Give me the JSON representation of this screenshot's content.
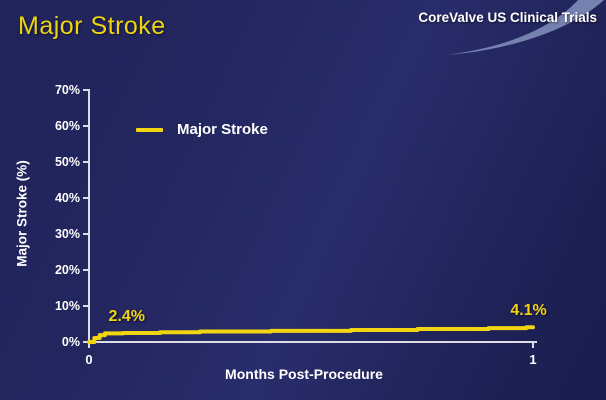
{
  "slide": {
    "title": "Major Stroke",
    "logo_text": "CoreValve US Clinical Trials"
  },
  "colors": {
    "background_navy": "#22255D",
    "accent_yellow": "#F2D411",
    "axis": "#DDDDE8",
    "text_white": "#FFFFFF",
    "swoosh_blue": "#7E8CB8"
  },
  "chart_data": {
    "type": "line",
    "title": "",
    "xlabel": "Months Post-Procedure",
    "ylabel": "Major Stroke (%)",
    "xlim": [
      0,
      1
    ],
    "ylim": [
      0,
      70
    ],
    "grid": false,
    "xticks": [
      0,
      1
    ],
    "yticks": [
      0,
      10,
      20,
      30,
      40,
      50,
      60,
      70
    ],
    "ytick_suffix": "%",
    "legend": {
      "position": "upper-left-inside"
    },
    "series": [
      {
        "name": "Major Stroke",
        "color": "#F2D411",
        "interpolation": "step-after",
        "points": [
          [
            0,
            0
          ],
          [
            0.012,
            1.1
          ],
          [
            0.024,
            1.9
          ],
          [
            0.036,
            2.4
          ],
          [
            0.077,
            2.5
          ],
          [
            0.16,
            2.7
          ],
          [
            0.25,
            2.9
          ],
          [
            0.41,
            3.1
          ],
          [
            0.59,
            3.35
          ],
          [
            0.74,
            3.6
          ],
          [
            0.9,
            3.85
          ],
          [
            0.985,
            4.1
          ],
          [
            1.0,
            4.1
          ]
        ]
      }
    ],
    "annotations": [
      {
        "text": "2.4%",
        "x": 0.085,
        "y": 2.4
      },
      {
        "text": "4.1%",
        "x": 0.99,
        "y": 4.1
      }
    ]
  }
}
